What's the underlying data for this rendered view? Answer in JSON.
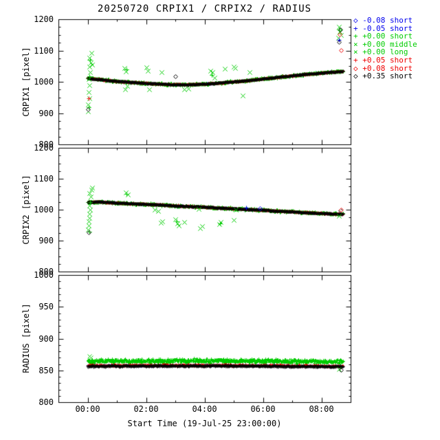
{
  "title": "20250720 CRPIX1 / CRPIX2 / RADIUS",
  "xlabel": "Start Time (19-Jul-25 23:00:00)",
  "axes": {
    "xlim": [
      -1,
      9
    ],
    "xminor_step": 1,
    "xticks": [
      {
        "v": 0,
        "label": "00:00"
      },
      {
        "v": 2,
        "label": "02:00"
      },
      {
        "v": 4,
        "label": "04:00"
      },
      {
        "v": 6,
        "label": "06:00"
      },
      {
        "v": 8,
        "label": "08:00"
      }
    ]
  },
  "legend": [
    {
      "symbol": "diamond",
      "color": "#0000ee",
      "label": "-0.08 short"
    },
    {
      "symbol": "plus",
      "color": "#0000ee",
      "label": "-0.05 short"
    },
    {
      "symbol": "plus",
      "color": "#00cc00",
      "label": "+0.00 short"
    },
    {
      "symbol": "cross",
      "color": "#00cc00",
      "label": "+0.00 middle"
    },
    {
      "symbol": "cross",
      "color": "#00cc00",
      "label": "+0.00 long"
    },
    {
      "symbol": "plus",
      "color": "#ee0000",
      "label": "+0.05 short"
    },
    {
      "symbol": "diamond",
      "color": "#ee0000",
      "label": "+0.08 short"
    },
    {
      "symbol": "diamond",
      "color": "#000000",
      "label": "+0.35 short"
    }
  ],
  "chart_data": [
    {
      "type": "scatter",
      "ylabel": "CRPIX1 [pixel]",
      "ylim": [
        800,
        1200
      ],
      "yticks": [
        800,
        900,
        1000,
        1100,
        1200
      ],
      "yminor_step": 25,
      "trend": [
        [
          0,
          1012
        ],
        [
          0.3,
          1009
        ],
        [
          0.7,
          1005
        ],
        [
          1.2,
          1001
        ],
        [
          1.8,
          997
        ],
        [
          2.4,
          994
        ],
        [
          2.9,
          992
        ],
        [
          3.4,
          991
        ],
        [
          3.9,
          993
        ],
        [
          4.4,
          996
        ],
        [
          4.9,
          1000
        ],
        [
          5.4,
          1004
        ],
        [
          5.9,
          1009
        ],
        [
          6.4,
          1014
        ],
        [
          6.9,
          1019
        ],
        [
          7.4,
          1024
        ],
        [
          7.9,
          1028
        ],
        [
          8.4,
          1032
        ],
        [
          8.75,
          1034
        ]
      ],
      "series": [
        {
          "name": "-0.05 short",
          "color": "#0000ee",
          "symbol": "plus",
          "offset": 0,
          "amp": 1.4,
          "size": 1.8
        },
        {
          "name": "+0.00 short/middle/long",
          "color": "#00cc00",
          "symbol": "plus",
          "offset": 0,
          "amp": 4.2,
          "size": 2.4
        },
        {
          "name": "+0.05 short",
          "color": "#ee0000",
          "symbol": "plus",
          "offset": 0,
          "amp": 2.1,
          "size": 1.8
        },
        {
          "name": "+0.35 short",
          "color": "#000000",
          "symbol": "diamond",
          "offset": 0,
          "amp": 1.6,
          "size": 1.7
        }
      ],
      "outliers": [
        {
          "color": "#00cc00",
          "symbol": "cross",
          "size": 3.2,
          "points": [
            [
              0.02,
              905
            ],
            [
              0,
              928
            ],
            [
              0.05,
              948
            ],
            [
              0.03,
              968
            ],
            [
              0.06,
              988
            ],
            [
              0.04,
              1008
            ],
            [
              0.08,
              1030
            ],
            [
              0.05,
              1048
            ],
            [
              0.1,
              1062
            ],
            [
              0.07,
              1078
            ],
            [
              0.12,
              1092
            ],
            [
              0.15,
              1055
            ],
            [
              1.25,
              1045
            ],
            [
              1.3,
              1034
            ],
            [
              1.28,
              976
            ],
            [
              1.35,
              986
            ],
            [
              2,
              1046
            ],
            [
              2.06,
              1036
            ],
            [
              2.1,
              976
            ],
            [
              2.52,
              1030
            ],
            [
              3.3,
              976
            ],
            [
              3.45,
              979
            ],
            [
              4.2,
              1036
            ],
            [
              4.28,
              1030
            ],
            [
              4.33,
              1013
            ],
            [
              4.7,
              1041
            ],
            [
              5,
              1049
            ],
            [
              5.05,
              1043
            ],
            [
              5.3,
              956
            ],
            [
              5.55,
              1031
            ],
            [
              8.58,
              1140
            ],
            [
              8.6,
              1176
            ],
            [
              8.63,
              1160
            ],
            [
              8.66,
              1150
            ]
          ]
        },
        {
          "color": "#00cc00",
          "symbol": "plus",
          "size": 3.2,
          "points": [
            [
              0.03,
              918
            ],
            [
              0.06,
              1018
            ],
            [
              0.09,
              1070
            ],
            [
              1.32,
              1040
            ],
            [
              4.25,
              1022
            ],
            [
              8.61,
              1168
            ]
          ]
        },
        {
          "color": "#ee0000",
          "symbol": "plus",
          "size": 3,
          "points": [
            [
              0.04,
              947
            ]
          ]
        },
        {
          "color": "#ee0000",
          "symbol": "diamond",
          "size": 3,
          "points": [
            [
              8.62,
              1152
            ],
            [
              8.68,
              1102
            ]
          ]
        },
        {
          "color": "#000000",
          "symbol": "diamond",
          "size": 3,
          "points": [
            [
              0.02,
              912
            ],
            [
              3,
              1018
            ],
            [
              8.65,
              1168
            ],
            [
              8.6,
              1128
            ]
          ]
        },
        {
          "color": "#0000ee",
          "symbol": "plus",
          "size": 3,
          "points": [
            [
              8.59,
              1135
            ]
          ]
        }
      ]
    },
    {
      "type": "scatter",
      "ylabel": "CRPIX2 [pixel]",
      "ylim": [
        800,
        1200
      ],
      "yticks": [
        800,
        900,
        1000,
        1100,
        1200
      ],
      "yminor_step": 25,
      "trend": [
        [
          0,
          1024
        ],
        [
          0.4,
          1026
        ],
        [
          1,
          1022
        ],
        [
          1.5,
          1020
        ],
        [
          2,
          1018
        ],
        [
          2.5,
          1016
        ],
        [
          3,
          1013
        ],
        [
          3.5,
          1011
        ],
        [
          4,
          1009
        ],
        [
          4.5,
          1006
        ],
        [
          5,
          1004
        ],
        [
          5.5,
          1001
        ],
        [
          6,
          999
        ],
        [
          6.5,
          996
        ],
        [
          7,
          994
        ],
        [
          7.5,
          991
        ],
        [
          8,
          989
        ],
        [
          8.4,
          987
        ],
        [
          8.75,
          986
        ]
      ],
      "series": [
        {
          "name": "-0.05 short",
          "color": "#0000ee",
          "symbol": "plus",
          "offset": 0,
          "amp": 1.4,
          "size": 1.8
        },
        {
          "name": "+0.00 short/middle/long",
          "color": "#00cc00",
          "symbol": "plus",
          "offset": 0,
          "amp": 4.2,
          "size": 2.4
        },
        {
          "name": "+0.05 short",
          "color": "#ee0000",
          "symbol": "plus",
          "offset": 0,
          "amp": 2.1,
          "size": 1.8
        },
        {
          "name": "+0.35 short",
          "color": "#000000",
          "symbol": "diamond",
          "offset": 0,
          "amp": 1.6,
          "size": 1.7
        }
      ],
      "outliers": [
        {
          "color": "#00cc00",
          "symbol": "cross",
          "size": 3.2,
          "points": [
            [
              0.02,
              936
            ],
            [
              0.04,
              950
            ],
            [
              0.03,
              962
            ],
            [
              0.06,
              974
            ],
            [
              0.05,
              987
            ],
            [
              0.08,
              1000
            ],
            [
              0.07,
              1013
            ],
            [
              0.1,
              1042
            ],
            [
              0.06,
              1053
            ],
            [
              0.12,
              1064
            ],
            [
              0.15,
              1071
            ],
            [
              1.3,
              1056
            ],
            [
              1.38,
              1049
            ],
            [
              2.3,
              1001
            ],
            [
              2.42,
              996
            ],
            [
              2.5,
              958
            ],
            [
              2.56,
              963
            ],
            [
              3,
              968
            ],
            [
              3.06,
              956
            ],
            [
              3.12,
              950
            ],
            [
              3.3,
              961
            ],
            [
              3.8,
              1003
            ],
            [
              3.85,
              941
            ],
            [
              3.92,
              947
            ],
            [
              4.5,
              953
            ],
            [
              4.56,
              959
            ],
            [
              5,
              966
            ],
            [
              5.06,
              1001
            ],
            [
              8.6,
              979
            ]
          ]
        },
        {
          "color": "#00cc00",
          "symbol": "plus",
          "size": 3.2,
          "points": [
            [
              0.05,
              930
            ],
            [
              0.09,
              1025
            ],
            [
              1.34,
              1052
            ],
            [
              3.05,
              962
            ],
            [
              4.52,
              956
            ]
          ]
        },
        {
          "color": "#000000",
          "symbol": "diamond",
          "size": 3,
          "points": [
            [
              0.03,
              926
            ],
            [
              8.64,
              997
            ]
          ]
        },
        {
          "color": "#ee0000",
          "symbol": "diamond",
          "size": 3,
          "points": [
            [
              8.67,
              1001
            ]
          ]
        },
        {
          "color": "#0000ee",
          "symbol": "plus",
          "size": 3,
          "points": [
            [
              5.42,
              1007
            ]
          ]
        },
        {
          "color": "#0000ee",
          "symbol": "diamond",
          "size": 3,
          "points": [
            [
              5.9,
              1004
            ]
          ]
        }
      ]
    },
    {
      "type": "scatter",
      "ylabel": "RADIUS [pixel]",
      "ylim": [
        800,
        1000
      ],
      "yticks": [
        800,
        850,
        900,
        950,
        1000
      ],
      "yminor_step": 10,
      "trend": [
        [
          0,
          857
        ],
        [
          4.4,
          857.5
        ],
        [
          8.75,
          856
        ]
      ],
      "series": [
        {
          "name": "-0.05 short",
          "color": "#0000ee",
          "symbol": "plus",
          "offset": 0.5,
          "amp": 1.2,
          "size": 1.6
        },
        {
          "name": "+0.00 short/middle/long",
          "color": "#00cc00",
          "symbol": "plus",
          "offset": 8,
          "amp": 3.8,
          "size": 2.4
        },
        {
          "name": "+0.05 short",
          "color": "#ee0000",
          "symbol": "plus",
          "offset": 1,
          "amp": 2.0,
          "size": 1.7
        },
        {
          "name": "+0.35 short",
          "color": "#000000",
          "symbol": "diamond",
          "offset": 0,
          "amp": 1.7,
          "size": 1.7
        }
      ],
      "outliers": [
        {
          "color": "#00cc00",
          "symbol": "cross",
          "size": 3,
          "points": [
            [
              0.05,
              872
            ],
            [
              0.1,
              870
            ],
            [
              8.6,
              852
            ]
          ]
        },
        {
          "color": "#000000",
          "symbol": "diamond",
          "size": 3,
          "points": [
            [
              8.66,
              851
            ]
          ]
        }
      ]
    }
  ]
}
